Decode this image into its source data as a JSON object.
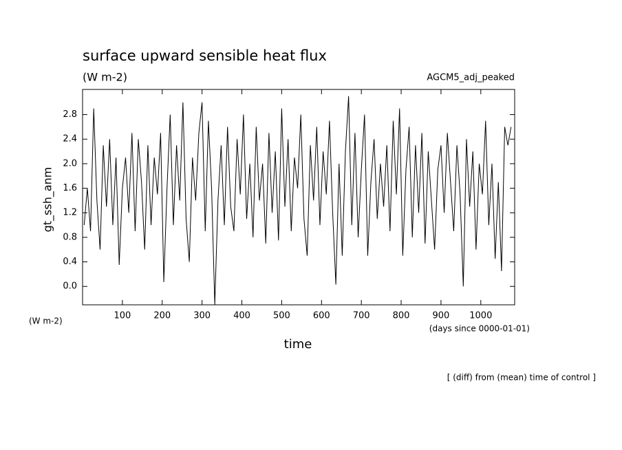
{
  "chart_data": {
    "type": "line",
    "title": "surface upward sensible heat flux",
    "subtitle": "(W m-2)",
    "annotation": "AGCM5_adj_peaked",
    "y_label": "gt_ssh_anm",
    "x_label": "time",
    "y_unit": "(W m-2)",
    "x_unit": "(days since 0000-01-01)",
    "footnote": "[ (diff) from (mean) time of control ]",
    "x": [
      4,
      12,
      20,
      28,
      36,
      44,
      52,
      60,
      68,
      76,
      84,
      92,
      100,
      108,
      116,
      124,
      132,
      140,
      148,
      156,
      164,
      172,
      180,
      188,
      196,
      204,
      212,
      220,
      228,
      236,
      244,
      252,
      260,
      268,
      276,
      284,
      292,
      300,
      308,
      316,
      324,
      332,
      340,
      348,
      356,
      364,
      372,
      380,
      388,
      396,
      404,
      412,
      420,
      428,
      436,
      444,
      452,
      460,
      468,
      476,
      484,
      492,
      500,
      508,
      516,
      524,
      532,
      540,
      548,
      556,
      564,
      572,
      580,
      588,
      596,
      604,
      612,
      620,
      628,
      636,
      644,
      652,
      660,
      668,
      676,
      684,
      692,
      700,
      708,
      716,
      724,
      732,
      740,
      748,
      756,
      764,
      772,
      780,
      788,
      796,
      804,
      812,
      820,
      828,
      836,
      844,
      852,
      860,
      868,
      876,
      884,
      892,
      900,
      908,
      916,
      924,
      932,
      940,
      948,
      956,
      964,
      972,
      980,
      988,
      996,
      1004,
      1012,
      1020,
      1028,
      1036,
      1044,
      1052,
      1060,
      1068,
      1076
    ],
    "series": [
      {
        "name": "gt_ssh_anm",
        "color": "#000000",
        "values": [
          1.0,
          1.6,
          0.9,
          2.9,
          1.4,
          0.6,
          2.3,
          1.3,
          2.4,
          1.0,
          2.1,
          0.35,
          1.6,
          2.1,
          1.2,
          2.5,
          0.9,
          2.4,
          1.7,
          0.6,
          2.3,
          1.0,
          2.1,
          1.5,
          2.5,
          0.07,
          1.6,
          2.8,
          1.0,
          2.3,
          1.4,
          3.0,
          1.1,
          0.4,
          2.1,
          1.4,
          2.5,
          3.0,
          0.9,
          2.7,
          1.6,
          -0.3,
          1.4,
          2.3,
          1.0,
          2.6,
          1.3,
          0.9,
          2.4,
          1.5,
          2.8,
          1.1,
          2.0,
          0.8,
          2.6,
          1.4,
          2.0,
          0.7,
          2.5,
          1.2,
          2.2,
          0.75,
          2.9,
          1.3,
          2.4,
          0.9,
          2.1,
          1.6,
          2.8,
          1.1,
          0.5,
          2.3,
          1.4,
          2.6,
          1.0,
          2.2,
          1.5,
          2.7,
          1.2,
          0.03,
          2.0,
          0.5,
          2.2,
          3.1,
          1.0,
          2.5,
          0.8,
          1.9,
          2.8,
          0.5,
          1.7,
          2.4,
          1.1,
          2.0,
          1.3,
          2.3,
          0.9,
          2.7,
          1.5,
          2.9,
          0.5,
          1.9,
          2.6,
          0.8,
          2.3,
          1.2,
          2.5,
          0.7,
          2.2,
          1.4,
          0.6,
          1.9,
          2.3,
          1.2,
          2.5,
          1.7,
          0.9,
          2.3,
          1.5,
          0.0,
          2.4,
          1.3,
          2.2,
          0.6,
          2.0,
          1.5,
          2.7,
          1.0,
          2.0,
          0.45,
          1.7,
          0.25,
          2.6,
          2.3,
          2.6
        ]
      }
    ],
    "xlim": [
      0,
      1085
    ],
    "ylim": [
      -0.3,
      3.21
    ],
    "xticks": [
      100,
      200,
      300,
      400,
      500,
      600,
      700,
      800,
      900,
      1000
    ],
    "yticks": [
      {
        "value": 0,
        "label": "0.0"
      },
      0.4,
      0.8,
      1.2,
      1.6,
      {
        "value": 2,
        "label": "2.0"
      },
      2.4,
      2.8
    ],
    "grid": false
  }
}
